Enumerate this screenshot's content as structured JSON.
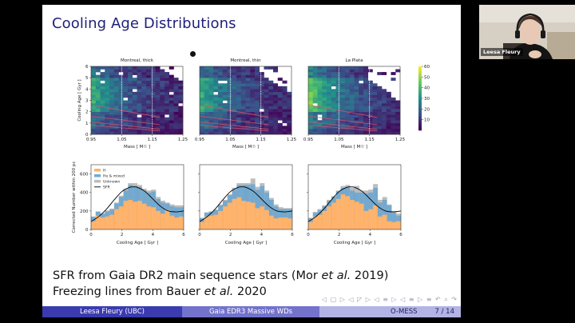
{
  "slide": {
    "title": "Cooling Age Distributions",
    "bullets": [
      {
        "parts": [
          {
            "text": "SFR from Gaia DR2 main sequence stars (Mor "
          },
          {
            "text": "et al.",
            "italic": true
          },
          {
            "text": " 2019)"
          }
        ]
      },
      {
        "parts": [
          {
            "text": "Freezing lines from Bauer "
          },
          {
            "text": "et al.",
            "italic": true
          },
          {
            "text": " 2020"
          }
        ]
      }
    ],
    "nav_symbols": "◁ ▢ ▷ ◁ ◸ ▷ ◁ ≡ ▷ ◁ ≡ ▷   ≡   ↶ ⌕ ↷",
    "footer": {
      "author": "Leesa Fleury  (UBC)",
      "talk_title": "Gaia EDR3 Massive WDs",
      "conference": "O-MESS",
      "page": "7 / 14"
    }
  },
  "webcam": {
    "participant_name": "Leesa Fleury"
  },
  "colors": {
    "title": "#1f1f7a",
    "H": "#ffb36b",
    "He_mixed": "#74a9cf",
    "Unknown": "#bdbdbd",
    "SFR": "#000000",
    "freezing_line": "#e0506a"
  },
  "chart_data": [
    {
      "type": "heatmap",
      "title": "Montreal, thick",
      "xlabel": "Mass  [ M☉ ]",
      "ylabel": "Cooling Age  [ Gyr ]",
      "xlim": [
        0.95,
        1.25
      ],
      "ylim": [
        0,
        6
      ],
      "xticks": [
        "0.95",
        "1.05",
        "1.15",
        "1.25"
      ],
      "yticks": [
        "0",
        "1",
        "2",
        "3",
        "4",
        "5",
        "6"
      ],
      "vlines": [
        1.05,
        1.15
      ],
      "grid": false
    },
    {
      "type": "heatmap",
      "title": "Montreal, thin",
      "xlabel": "Mass  [ M☉ ]",
      "xlim": [
        0.95,
        1.25
      ],
      "ylim": [
        0,
        6
      ],
      "xticks": [
        "0.95",
        "1.05",
        "1.15",
        "1.25"
      ],
      "vlines": [
        1.05,
        1.15
      ],
      "grid": false
    },
    {
      "type": "heatmap",
      "title": "La Plata",
      "xlabel": "Mass  [ M☉ ]",
      "xlim": [
        0.95,
        1.25
      ],
      "ylim": [
        0,
        6
      ],
      "xticks": [
        "0.95",
        "1.05",
        "1.15",
        "1.25"
      ],
      "vlines": [
        1.05,
        1.15
      ],
      "colorbar": {
        "range": [
          0,
          60
        ],
        "ticks": [
          "10",
          "20",
          "30",
          "40",
          "50",
          "60"
        ]
      },
      "grid": false
    },
    {
      "type": "bar",
      "stacked": true,
      "xlabel": "Cooling Age  [ Gyr ]",
      "ylabel": "Corrected Number within 200 pc",
      "xlim": [
        0,
        6
      ],
      "ylim": [
        0,
        700
      ],
      "xticks": [
        "0",
        "2",
        "4",
        "6"
      ],
      "yticks": [
        "0",
        "200",
        "400",
        "600"
      ],
      "legend": {
        "placement": "top-left",
        "entries": [
          "H",
          "He & mixed",
          "Unknown",
          "SFR"
        ]
      },
      "bin_width": 0.3,
      "series": [
        {
          "name": "H",
          "values": [
            90,
            150,
            130,
            140,
            160,
            220,
            250,
            310,
            320,
            300,
            310,
            280,
            250,
            240,
            200,
            170,
            210,
            150,
            130,
            140
          ]
        },
        {
          "name": "He & mixed",
          "values": [
            45,
            40,
            40,
            55,
            55,
            60,
            100,
            110,
            160,
            170,
            150,
            140,
            150,
            170,
            130,
            120,
            70,
            100,
            110,
            100
          ]
        },
        {
          "name": "Unknown",
          "values": [
            5,
            5,
            5,
            10,
            10,
            10,
            15,
            20,
            20,
            30,
            20,
            20,
            20,
            20,
            20,
            20,
            10,
            20,
            20,
            20
          ]
        }
      ],
      "sfr": {
        "x": [
          0,
          0.5,
          1,
          1.5,
          2,
          2.5,
          2.75,
          3,
          3.5,
          4,
          4.5,
          5,
          5.5,
          6
        ],
        "y": [
          85,
          140,
          220,
          320,
          410,
          455,
          460,
          455,
          410,
          330,
          250,
          200,
          190,
          200
        ]
      }
    },
    {
      "type": "bar",
      "stacked": true,
      "xlabel": "Cooling Age  [ Gyr ]",
      "xlim": [
        0,
        6
      ],
      "ylim": [
        0,
        700
      ],
      "xticks": [
        "0",
        "2",
        "4",
        "6"
      ],
      "bin_width": 0.3,
      "series": [
        {
          "name": "H",
          "values": [
            80,
            140,
            150,
            160,
            200,
            250,
            290,
            330,
            350,
            310,
            300,
            290,
            230,
            250,
            210,
            150,
            120,
            130,
            130,
            120
          ]
        },
        {
          "name": "He & mixed",
          "values": [
            40,
            40,
            40,
            50,
            60,
            60,
            80,
            100,
            130,
            170,
            180,
            200,
            200,
            220,
            190,
            170,
            130,
            90,
            90,
            100
          ]
        },
        {
          "name": "Unknown",
          "values": [
            5,
            5,
            5,
            5,
            10,
            10,
            10,
            20,
            20,
            20,
            20,
            60,
            30,
            30,
            20,
            20,
            20,
            20,
            10,
            10
          ]
        }
      ],
      "sfr": {
        "x": [
          0,
          0.5,
          1,
          1.5,
          2,
          2.5,
          2.75,
          3,
          3.5,
          4,
          4.5,
          5,
          5.5,
          6
        ],
        "y": [
          85,
          140,
          220,
          320,
          410,
          455,
          460,
          455,
          410,
          330,
          250,
          200,
          190,
          200
        ]
      }
    },
    {
      "type": "bar",
      "stacked": true,
      "xlabel": "Cooling Age  [ Gyr ]",
      "xlim": [
        0,
        6
      ],
      "ylim": [
        0,
        700
      ],
      "xticks": [
        "0",
        "2",
        "4",
        "6"
      ],
      "bin_width": 0.3,
      "series": [
        {
          "name": "H",
          "values": [
            80,
            140,
            160,
            200,
            250,
            290,
            330,
            380,
            360,
            320,
            300,
            280,
            200,
            220,
            260,
            140,
            160,
            90,
            80,
            90
          ]
        },
        {
          "name": "He & mixed",
          "values": [
            40,
            40,
            50,
            50,
            60,
            60,
            80,
            70,
            100,
            100,
            100,
            120,
            190,
            180,
            190,
            150,
            160,
            170,
            100,
            60
          ]
        },
        {
          "name": "Unknown",
          "values": [
            5,
            10,
            10,
            10,
            10,
            10,
            10,
            20,
            20,
            30,
            70,
            20,
            30,
            30,
            40,
            30,
            30,
            10,
            20,
            20
          ]
        }
      ],
      "sfr": {
        "x": [
          0,
          0.5,
          1,
          1.5,
          2,
          2.5,
          2.75,
          3,
          3.5,
          4,
          4.5,
          5,
          5.5,
          6
        ],
        "y": [
          85,
          140,
          220,
          320,
          410,
          455,
          460,
          455,
          410,
          330,
          250,
          200,
          190,
          200
        ]
      }
    }
  ]
}
